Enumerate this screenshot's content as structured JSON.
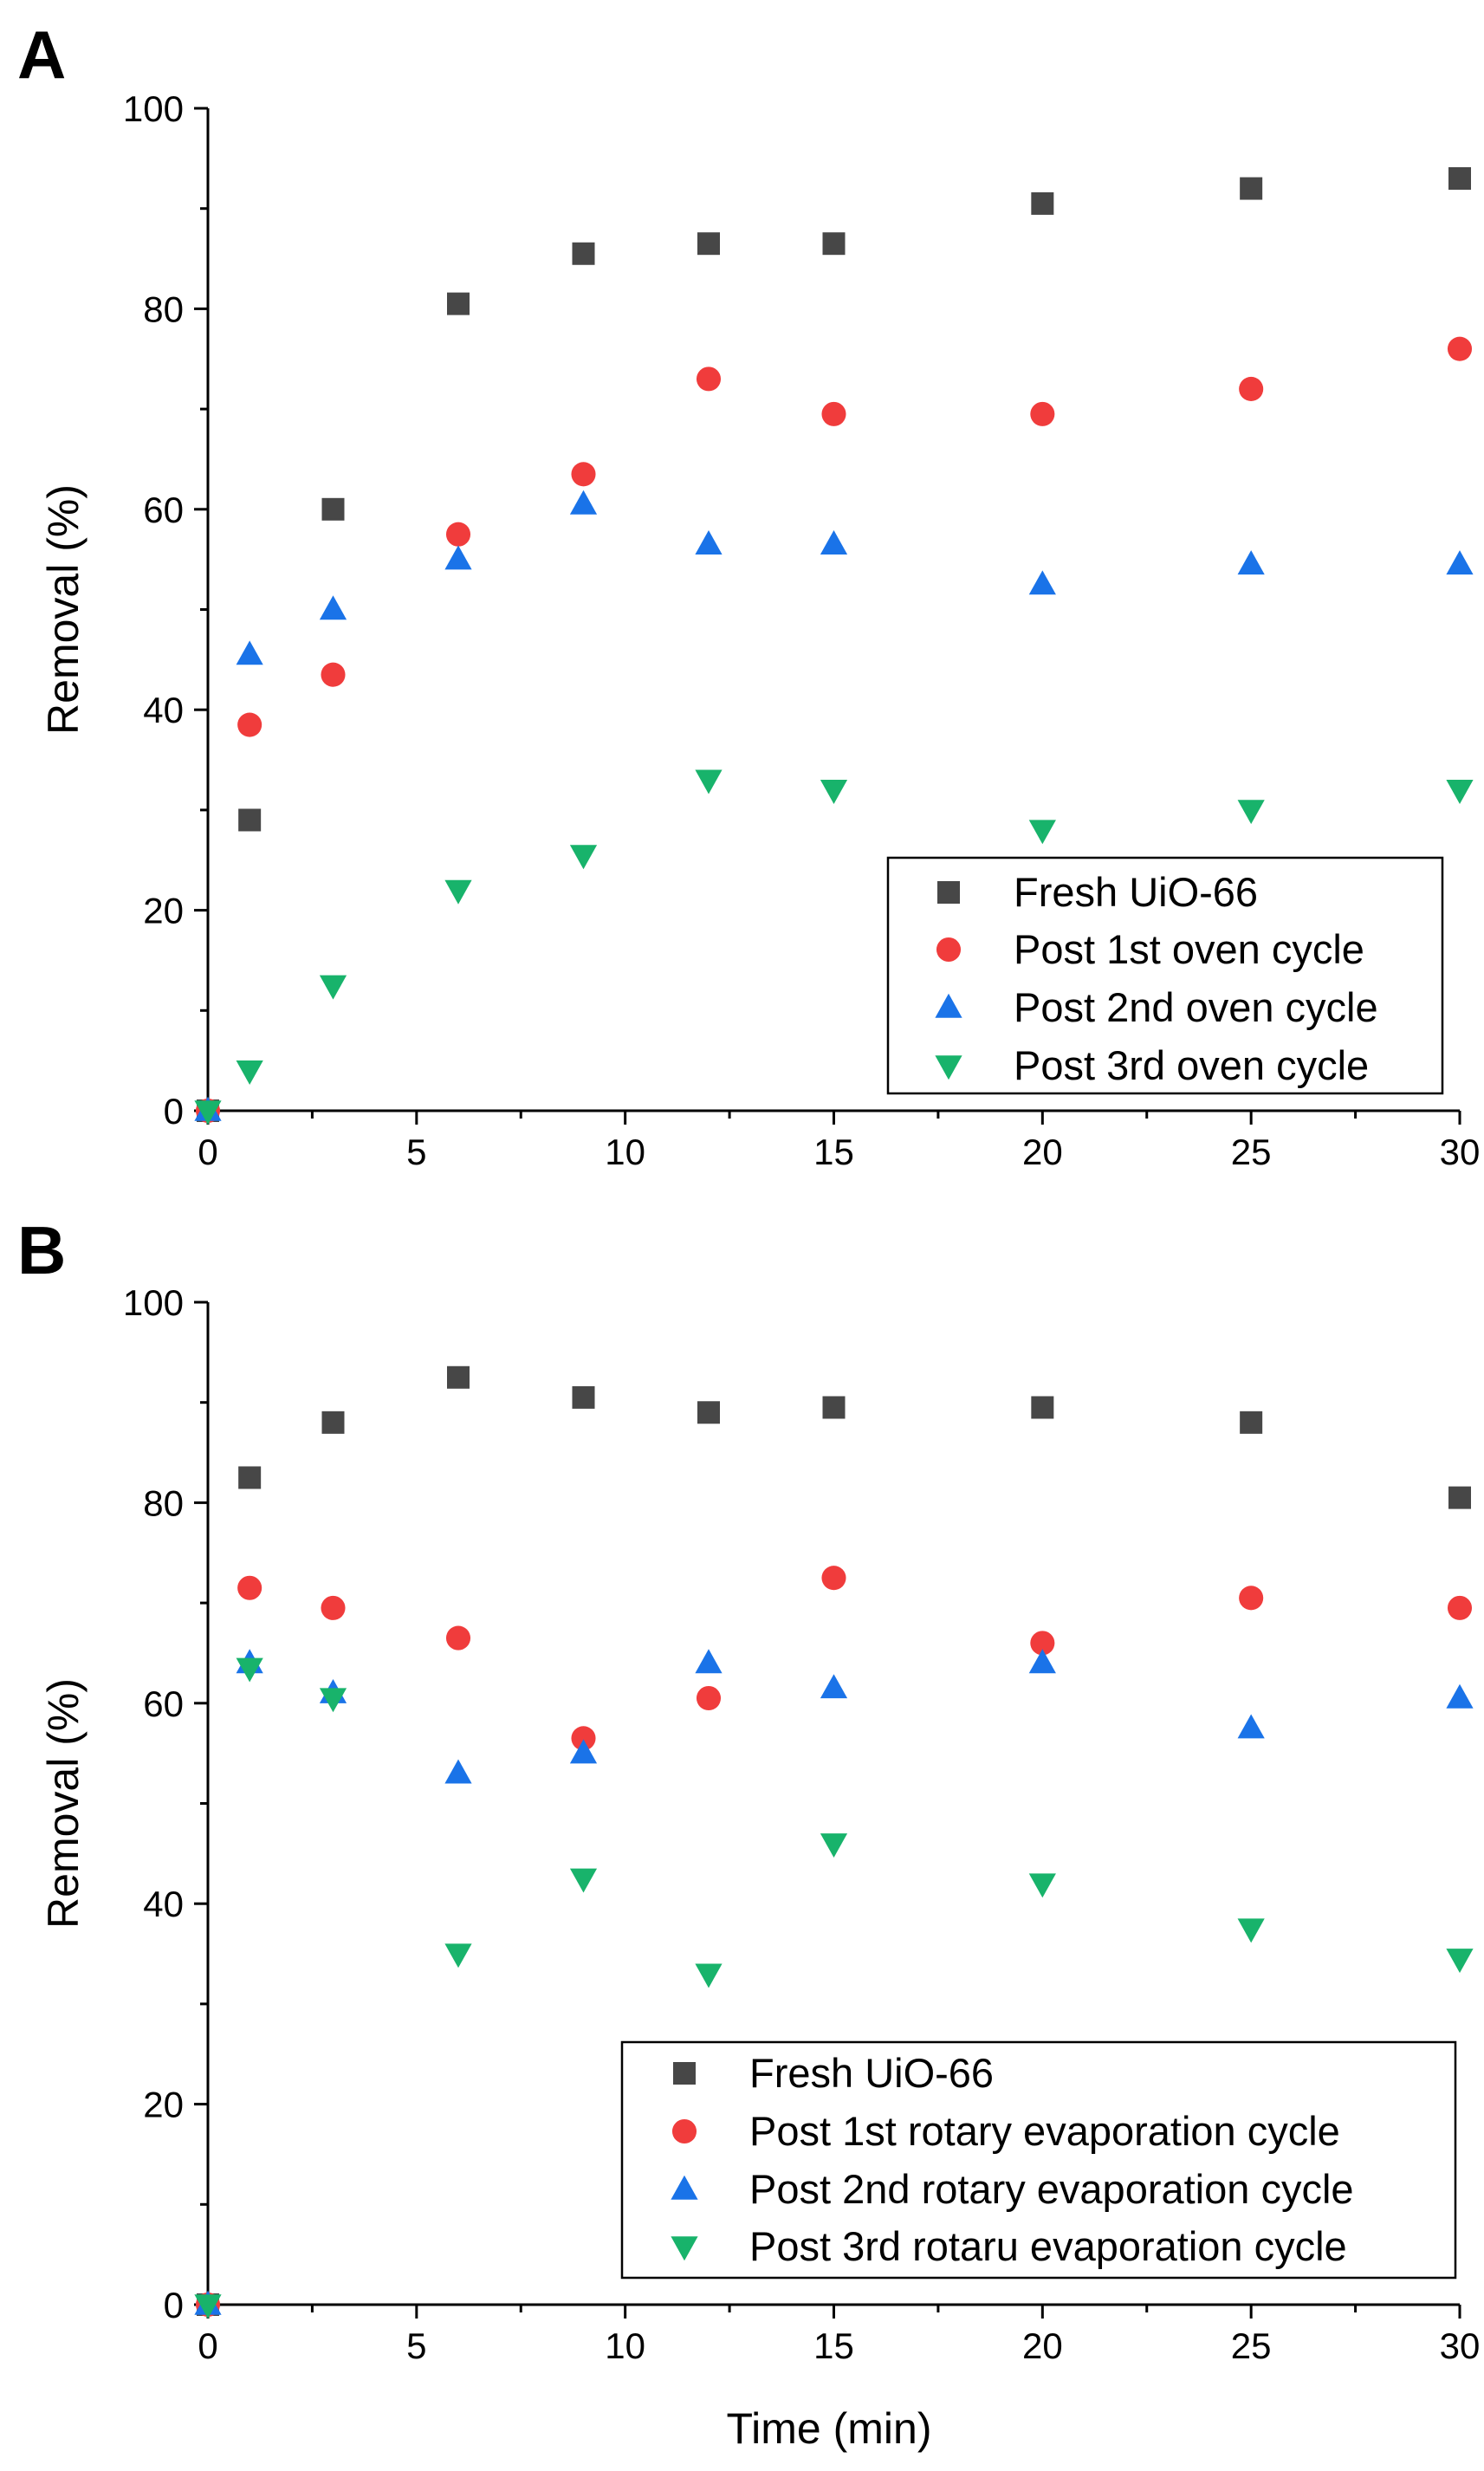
{
  "figure": {
    "xlabel": "Time (min)"
  },
  "colors": {
    "fresh": "#474747",
    "cycle1": "#f03c3c",
    "cycle2": "#1a73e8",
    "cycle3": "#18b36b"
  },
  "chart_data": [
    {
      "type": "scatter",
      "panel_label": "A",
      "xlabel": "",
      "ylabel": "Removal (%)",
      "xlim": [
        0,
        30
      ],
      "ylim": [
        0,
        100
      ],
      "xticks": [
        0,
        5,
        10,
        15,
        20,
        25,
        30
      ],
      "yticks": [
        0,
        20,
        40,
        60,
        80,
        100
      ],
      "grid": false,
      "legend_position": "bottom-right",
      "series": [
        {
          "name": "Fresh UiO-66",
          "marker": "square",
          "color": "#474747",
          "x": [
            0,
            1,
            3,
            6,
            9,
            12,
            15,
            20,
            25,
            30
          ],
          "y": [
            0,
            29,
            60,
            80.5,
            85.5,
            86.5,
            86.5,
            90.5,
            92,
            93
          ]
        },
        {
          "name": "Post 1st oven cycle",
          "marker": "circle",
          "color": "#f03c3c",
          "x": [
            0,
            1,
            3,
            6,
            9,
            12,
            15,
            20,
            25,
            30
          ],
          "y": [
            0,
            38.5,
            43.5,
            57.5,
            63.5,
            73,
            69.5,
            69.5,
            72,
            76
          ]
        },
        {
          "name": "Post 2nd oven cycle",
          "marker": "triangle-up",
          "color": "#1a73e8",
          "x": [
            0,
            1,
            3,
            6,
            9,
            12,
            15,
            20,
            25,
            30
          ],
          "y": [
            0,
            45.5,
            50,
            55,
            60.5,
            56.5,
            56.5,
            52.5,
            54.5,
            54.5
          ]
        },
        {
          "name": "Post 3rd oven cycle",
          "marker": "triangle-down",
          "color": "#18b36b",
          "x": [
            0,
            1,
            3,
            6,
            9,
            12,
            15,
            20,
            25,
            30
          ],
          "y": [
            0,
            4,
            12.5,
            22,
            25.5,
            33,
            32,
            28,
            30,
            32
          ]
        }
      ]
    },
    {
      "type": "scatter",
      "panel_label": "B",
      "xlabel": "Time (min)",
      "ylabel": "Removal (%)",
      "xlim": [
        0,
        30
      ],
      "ylim": [
        0,
        100
      ],
      "xticks": [
        0,
        5,
        10,
        15,
        20,
        25,
        30
      ],
      "yticks": [
        0,
        20,
        40,
        60,
        80,
        100
      ],
      "grid": false,
      "legend_position": "bottom-right",
      "series": [
        {
          "name": "Fresh UiO-66",
          "marker": "square",
          "color": "#474747",
          "x": [
            0,
            1,
            3,
            6,
            9,
            12,
            15,
            20,
            25,
            30
          ],
          "y": [
            0,
            82.5,
            88,
            92.5,
            90.5,
            89,
            89.5,
            89.5,
            88,
            80.5
          ]
        },
        {
          "name": "Post 1st rotary evaporation cycle",
          "marker": "circle",
          "color": "#f03c3c",
          "x": [
            0,
            1,
            3,
            6,
            9,
            12,
            15,
            20,
            25,
            30
          ],
          "y": [
            0,
            71.5,
            69.5,
            66.5,
            56.5,
            60.5,
            72.5,
            66,
            70.5,
            69.5
          ]
        },
        {
          "name": "Post 2nd rotary evaporation cycle",
          "marker": "triangle-up",
          "color": "#1a73e8",
          "x": [
            0,
            1,
            3,
            6,
            9,
            12,
            15,
            20,
            25,
            30
          ],
          "y": [
            0,
            64,
            61,
            53,
            55,
            64,
            61.5,
            64,
            57.5,
            60.5
          ]
        },
        {
          "name": "Post 3rd rotaru evaporation cycle",
          "marker": "triangle-down",
          "color": "#18b36b",
          "x": [
            0,
            1,
            3,
            6,
            9,
            12,
            15,
            20,
            25,
            30
          ],
          "y": [
            0,
            63.5,
            60.5,
            35,
            42.5,
            33,
            46,
            42,
            37.5,
            34.5
          ]
        }
      ]
    }
  ]
}
